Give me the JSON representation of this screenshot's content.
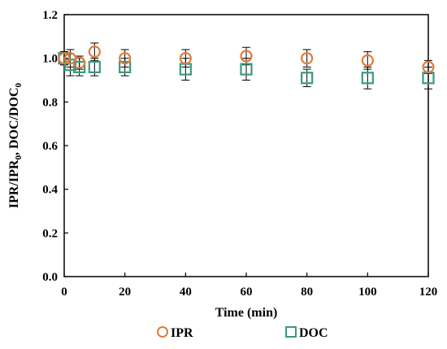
{
  "chart_data": {
    "type": "scatter",
    "xlabel": "Time (min)",
    "ylabel": {
      "parts": [
        {
          "t": "IPR/IPR",
          "sub": false
        },
        {
          "t": "0",
          "sub": true
        },
        {
          "t": ", DOC/DOC",
          "sub": false
        },
        {
          "t": "0",
          "sub": true
        }
      ]
    },
    "xlim": [
      0,
      120
    ],
    "ylim": [
      0,
      1.2
    ],
    "x_ticks": [
      0,
      20,
      40,
      60,
      80,
      100,
      120
    ],
    "y_ticks": [
      "0.0",
      "0.2",
      "0.4",
      "0.6",
      "0.8",
      "1.0",
      "1.2"
    ],
    "grid": false,
    "legend_position": "bottom",
    "series": [
      {
        "name": "IPR",
        "marker": "circle",
        "color": "#E07B39",
        "points": [
          {
            "x": 0,
            "y": 1.0,
            "err": 0.03
          },
          {
            "x": 2,
            "y": 1.0,
            "err": 0.04
          },
          {
            "x": 5,
            "y": 0.98,
            "err": 0.03
          },
          {
            "x": 10,
            "y": 1.03,
            "err": 0.04
          },
          {
            "x": 20,
            "y": 1.0,
            "err": 0.04
          },
          {
            "x": 40,
            "y": 1.0,
            "err": 0.04
          },
          {
            "x": 60,
            "y": 1.01,
            "err": 0.04
          },
          {
            "x": 80,
            "y": 1.0,
            "err": 0.04
          },
          {
            "x": 100,
            "y": 0.99,
            "err": 0.04
          },
          {
            "x": 120,
            "y": 0.96,
            "err": 0.03
          }
        ]
      },
      {
        "name": "DOC",
        "marker": "square",
        "color": "#3A9A7E",
        "points": [
          {
            "x": 0,
            "y": 1.0,
            "err": 0.03
          },
          {
            "x": 2,
            "y": 0.97,
            "err": 0.05
          },
          {
            "x": 5,
            "y": 0.96,
            "err": 0.04
          },
          {
            "x": 10,
            "y": 0.96,
            "err": 0.04
          },
          {
            "x": 20,
            "y": 0.96,
            "err": 0.04
          },
          {
            "x": 40,
            "y": 0.95,
            "err": 0.05
          },
          {
            "x": 60,
            "y": 0.95,
            "err": 0.05
          },
          {
            "x": 80,
            "y": 0.91,
            "err": 0.04
          },
          {
            "x": 100,
            "y": 0.91,
            "err": 0.05
          },
          {
            "x": 120,
            "y": 0.91,
            "err": 0.05
          }
        ]
      }
    ]
  }
}
